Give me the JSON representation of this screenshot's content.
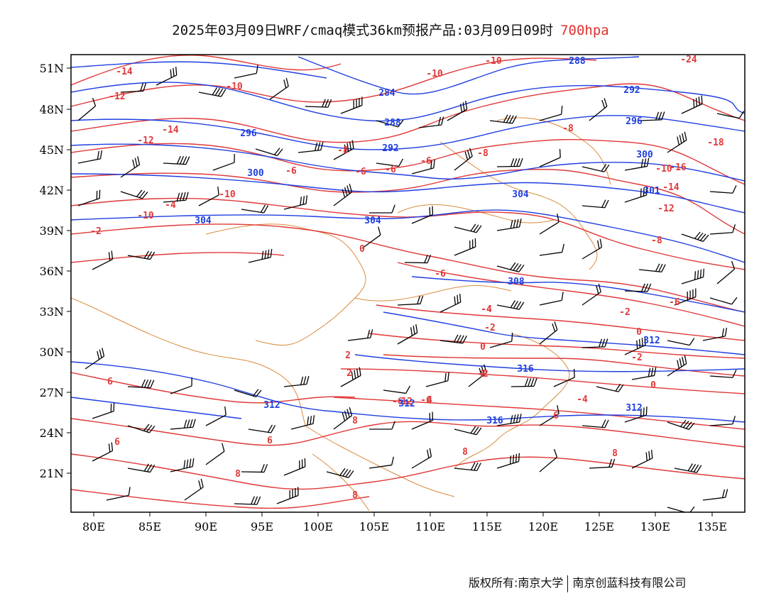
{
  "header": {
    "title": "2025年03月09日WRF/cmaq模式36km预报产品:03月09日09时",
    "level": "700hpa"
  },
  "axes": {
    "lat_labels": [
      "51N",
      "48N",
      "45N",
      "42N",
      "39N",
      "36N",
      "33N",
      "30N",
      "27N",
      "24N",
      "21N"
    ],
    "lon_labels": [
      "80E",
      "85E",
      "90E",
      "95E",
      "100E",
      "105E",
      "110E",
      "115E",
      "120E",
      "125E",
      "130E",
      "135E"
    ]
  },
  "colors": {
    "temperature": "#e03838",
    "geopotential": "#1f3fe0",
    "boundary": "#d98a3a",
    "wind": "#000000",
    "level_text": "#e03030"
  },
  "contour_labels": {
    "temperature": [
      "-14",
      "-12",
      "-10",
      "-14",
      "-12",
      "-10",
      "-10",
      "-8",
      "-8",
      "-6",
      "-6",
      "-6",
      "-8",
      "-6",
      "-10",
      "-24",
      "-18",
      "-16",
      "-14",
      "-12",
      "-10",
      "-10",
      "-2",
      "0",
      "-8",
      "-4",
      "-6",
      "-4",
      "-2",
      "0",
      "-2",
      "0",
      "-2",
      "2",
      "-6",
      "6",
      "-6",
      "2",
      "4",
      "-4",
      "6",
      "6",
      "8",
      "8",
      "8",
      "6",
      "8",
      "12",
      "8",
      "8",
      "0",
      "-2",
      "-6",
      "-4"
    ],
    "geopotential": [
      "288",
      "284",
      "292",
      "288",
      "296",
      "292",
      "296",
      "300",
      "300",
      "304",
      "304",
      "304",
      "308",
      "312",
      "316",
      "316",
      "312",
      "312",
      "312",
      "301"
    ]
  },
  "footer": {
    "left": "版权所有:南京大学",
    "right": "南京创蓝科技有限公司"
  }
}
